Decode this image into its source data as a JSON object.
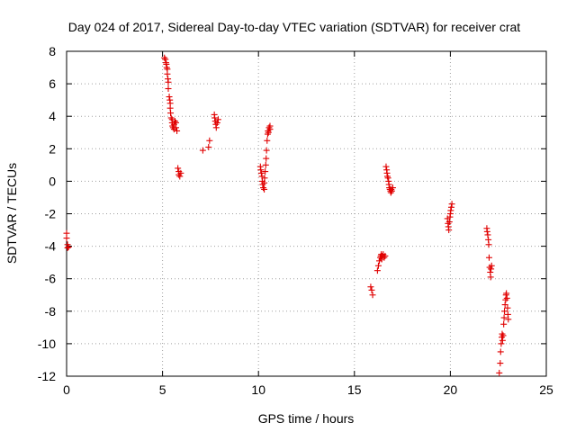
{
  "chart_data": {
    "type": "scatter",
    "title": "Day 024 of 2017, Sidereal Day-to-day VTEC variation (SDTVAR) for receiver crat",
    "xlabel": "GPS time / hours",
    "ylabel": "SDTVAR / TECUs",
    "xlim": [
      0,
      25
    ],
    "ylim": [
      -12,
      8
    ],
    "xticks": [
      0,
      5,
      10,
      15,
      20,
      25
    ],
    "yticks": [
      -12,
      -10,
      -8,
      -6,
      -4,
      -2,
      0,
      2,
      4,
      6,
      8
    ],
    "grid": true,
    "marker": "+",
    "series": [
      {
        "name": "SDTVAR",
        "color": "#e00000",
        "points": [
          [
            0.0,
            -3.2
          ],
          [
            0.0,
            -3.5
          ],
          [
            0.05,
            -3.9
          ],
          [
            0.05,
            -4.1
          ],
          [
            0.1,
            -4.05
          ],
          [
            5.1,
            7.6
          ],
          [
            5.15,
            7.5
          ],
          [
            5.18,
            7.3
          ],
          [
            5.2,
            7.2
          ],
          [
            5.22,
            7.0
          ],
          [
            5.25,
            6.9
          ],
          [
            5.25,
            6.6
          ],
          [
            5.28,
            6.3
          ],
          [
            5.3,
            6.1
          ],
          [
            5.3,
            5.7
          ],
          [
            5.35,
            5.2
          ],
          [
            5.38,
            5.0
          ],
          [
            5.4,
            4.8
          ],
          [
            5.4,
            4.5
          ],
          [
            5.42,
            4.2
          ],
          [
            5.45,
            3.9
          ],
          [
            5.5,
            3.8
          ],
          [
            5.5,
            3.6
          ],
          [
            5.52,
            3.4
          ],
          [
            5.55,
            3.3
          ],
          [
            5.6,
            3.5
          ],
          [
            5.6,
            3.2
          ],
          [
            5.65,
            3.7
          ],
          [
            5.7,
            3.6
          ],
          [
            5.7,
            3.3
          ],
          [
            5.75,
            3.1
          ],
          [
            5.8,
            0.8
          ],
          [
            5.85,
            0.6
          ],
          [
            5.85,
            0.4
          ],
          [
            5.9,
            0.3
          ],
          [
            5.95,
            0.5
          ],
          [
            7.1,
            1.9
          ],
          [
            7.4,
            2.1
          ],
          [
            7.45,
            2.5
          ],
          [
            7.7,
            4.1
          ],
          [
            7.72,
            3.9
          ],
          [
            7.75,
            3.7
          ],
          [
            7.78,
            3.5
          ],
          [
            7.8,
            3.3
          ],
          [
            7.85,
            3.6
          ],
          [
            7.9,
            3.8
          ],
          [
            10.1,
            0.9
          ],
          [
            10.12,
            0.7
          ],
          [
            10.15,
            0.5
          ],
          [
            10.18,
            0.3
          ],
          [
            10.2,
            0.0
          ],
          [
            10.22,
            -0.2
          ],
          [
            10.25,
            -0.4
          ],
          [
            10.3,
            -0.5
          ],
          [
            10.3,
            -0.1
          ],
          [
            10.32,
            0.2
          ],
          [
            10.35,
            0.6
          ],
          [
            10.38,
            1.0
          ],
          [
            10.4,
            1.4
          ],
          [
            10.42,
            1.9
          ],
          [
            10.45,
            2.5
          ],
          [
            10.48,
            2.9
          ],
          [
            10.5,
            3.1
          ],
          [
            10.52,
            3.0
          ],
          [
            10.55,
            3.3
          ],
          [
            10.6,
            3.2
          ],
          [
            10.6,
            3.4
          ],
          [
            15.85,
            -6.5
          ],
          [
            15.9,
            -6.7
          ],
          [
            15.95,
            -7.0
          ],
          [
            16.2,
            -5.5
          ],
          [
            16.25,
            -5.2
          ],
          [
            16.3,
            -4.9
          ],
          [
            16.35,
            -4.7
          ],
          [
            16.38,
            -4.6
          ],
          [
            16.4,
            -4.5
          ],
          [
            16.42,
            -4.8
          ],
          [
            16.45,
            -4.6
          ],
          [
            16.5,
            -4.5
          ],
          [
            16.55,
            -4.7
          ],
          [
            16.6,
            -4.6
          ],
          [
            16.65,
            0.9
          ],
          [
            16.68,
            0.7
          ],
          [
            16.7,
            0.5
          ],
          [
            16.72,
            0.3
          ],
          [
            16.75,
            0.2
          ],
          [
            16.78,
            0.0
          ],
          [
            16.8,
            -0.2
          ],
          [
            16.82,
            -0.4
          ],
          [
            16.85,
            -0.5
          ],
          [
            16.88,
            -0.6
          ],
          [
            16.9,
            -0.7
          ],
          [
            16.92,
            -0.5
          ],
          [
            16.95,
            -0.6
          ],
          [
            17.0,
            -0.4
          ],
          [
            19.85,
            -2.3
          ],
          [
            19.88,
            -2.6
          ],
          [
            19.9,
            -2.8
          ],
          [
            19.92,
            -3.0
          ],
          [
            19.95,
            -2.5
          ],
          [
            19.98,
            -2.2
          ],
          [
            20.0,
            -2.0
          ],
          [
            20.02,
            -1.8
          ],
          [
            20.05,
            -1.6
          ],
          [
            20.08,
            -1.4
          ],
          [
            21.9,
            -2.9
          ],
          [
            21.92,
            -3.1
          ],
          [
            21.95,
            -3.3
          ],
          [
            21.98,
            -3.6
          ],
          [
            22.0,
            -3.9
          ],
          [
            22.02,
            -4.7
          ],
          [
            22.05,
            -5.3
          ],
          [
            22.08,
            -5.6
          ],
          [
            22.1,
            -5.9
          ],
          [
            22.12,
            -5.4
          ],
          [
            22.15,
            -5.2
          ],
          [
            22.55,
            -11.8
          ],
          [
            22.6,
            -11.2
          ],
          [
            22.62,
            -10.5
          ],
          [
            22.65,
            -10.0
          ],
          [
            22.68,
            -9.6
          ],
          [
            22.7,
            -9.4
          ],
          [
            22.72,
            -9.8
          ],
          [
            22.75,
            -9.5
          ],
          [
            22.78,
            -8.8
          ],
          [
            22.8,
            -8.4
          ],
          [
            22.82,
            -8.0
          ],
          [
            22.85,
            -7.6
          ],
          [
            22.88,
            -7.3
          ],
          [
            22.9,
            -7.0
          ],
          [
            22.92,
            -6.9
          ],
          [
            22.95,
            -7.2
          ],
          [
            22.98,
            -7.8
          ],
          [
            23.0,
            -8.2
          ],
          [
            23.02,
            -8.5
          ]
        ]
      }
    ]
  }
}
